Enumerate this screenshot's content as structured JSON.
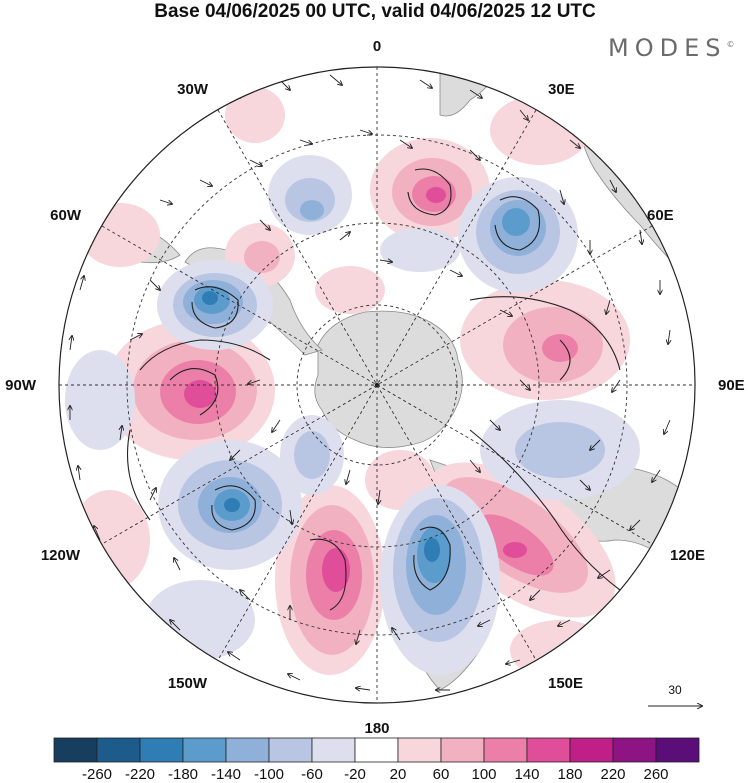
{
  "title": "Base 04/06/2025 00 UTC, valid 04/06/2025 12 UTC",
  "brand": "MODES",
  "brand_mark": "©",
  "map": {
    "projection": "south-polar-stereographic",
    "longitude_labels": [
      "0",
      "30E",
      "60E",
      "90E",
      "120E",
      "150E",
      "180",
      "150W",
      "120W",
      "90W",
      "60W",
      "30W"
    ],
    "land_color": "#dcdcdc",
    "coastline_color": "#888888",
    "grid_style": "dashed"
  },
  "reference_vector": {
    "label": "30"
  },
  "colorbar": {
    "labels": [
      "-260",
      "-220",
      "-180",
      "-140",
      "-100",
      "-60",
      "-20",
      "20",
      "60",
      "100",
      "140",
      "180",
      "220",
      "260"
    ],
    "colors": [
      "#173e5e",
      "#1d5b8b",
      "#2f7db5",
      "#5b9ccd",
      "#8fb1d9",
      "#b9c6e3",
      "#dedfee",
      "#ffffff",
      "#f7d6dc",
      "#f2b1c1",
      "#ec7fa7",
      "#e04d99",
      "#c01f88",
      "#8e1483",
      "#5b0d78"
    ]
  }
}
